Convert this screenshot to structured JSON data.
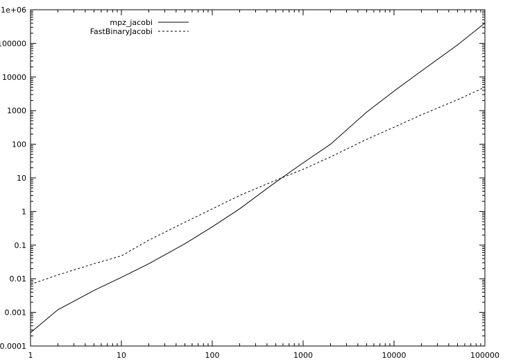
{
  "chart_data": {
    "type": "line",
    "title": "",
    "xlabel": "",
    "ylabel": "",
    "xscale": "log",
    "yscale": "log",
    "xlim": [
      1,
      100000
    ],
    "ylim": [
      0.0001,
      1000000
    ],
    "grid": false,
    "legend_position": "top-left",
    "x_tick_labels": [
      "1",
      "10",
      "100",
      "1000",
      "10000",
      "100000"
    ],
    "y_tick_labels": [
      "0.0001",
      "0.001",
      "0.01",
      "0.1",
      "1",
      "10",
      "100",
      "1000",
      "10000",
      "100000",
      "1e+06"
    ],
    "series": [
      {
        "name": "mpz_jacobi",
        "style": "solid",
        "x": [
          1,
          2,
          5,
          10,
          20,
          50,
          100,
          200,
          500,
          1000,
          2000,
          5000,
          10000,
          20000,
          50000,
          100000
        ],
        "y": [
          0.00025,
          0.0012,
          0.0045,
          0.011,
          0.028,
          0.11,
          0.35,
          1.2,
          7.5,
          28,
          100,
          900,
          3800,
          15000,
          90000,
          400000
        ]
      },
      {
        "name": "FastBinaryJacobi",
        "style": "dashed",
        "x": [
          1,
          2,
          5,
          10,
          20,
          50,
          100,
          200,
          500,
          1000,
          2000,
          5000,
          10000,
          20000,
          50000,
          100000
        ],
        "y": [
          0.0068,
          0.013,
          0.028,
          0.048,
          0.14,
          0.48,
          1.2,
          3,
          8.5,
          18,
          42,
          140,
          320,
          750,
          2100,
          5000
        ]
      }
    ]
  }
}
